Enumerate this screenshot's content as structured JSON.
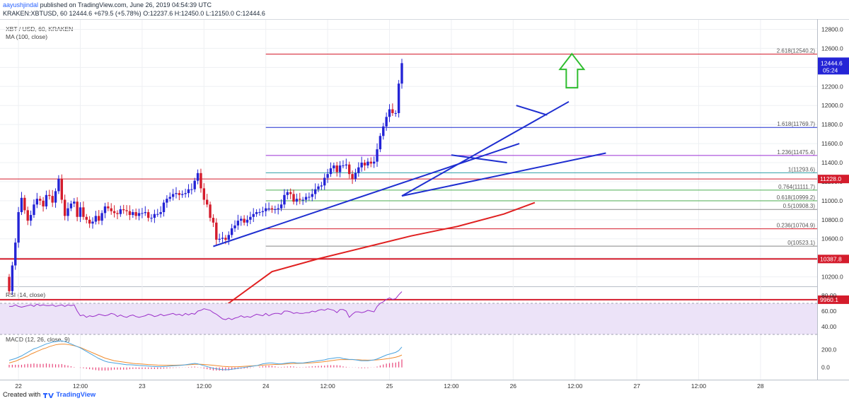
{
  "header": {
    "author": "aayushjindal",
    "published": "published on TradingView.com, June 26, 2019 04:54:39 UTC",
    "ticker": "KRAKEN:XBTUSD, 60",
    "last": "12444.6",
    "change": "+679.5 (+5.78%)",
    "o_label": "O:",
    "o": "12237.6",
    "h_label": "H:",
    "h": "12450.0",
    "l_label": "L:",
    "l": "12150.0",
    "c_label": "C:",
    "c": "12444.6"
  },
  "panel_titles": {
    "symbol": "XBT / USD, 60, KRAKEN",
    "ma": "MA (100, close)",
    "rsi": "RSI (14, close)",
    "macd": "MACD (12, 26, close, 9)"
  },
  "footer": {
    "created_with": "Created with",
    "brand": "TradingView"
  },
  "colors": {
    "bull": "#2424d6",
    "bear": "#d41c2c",
    "ma": "#e02020",
    "trend": "#1e2ed0",
    "fib_violet": "#9b2fd4",
    "fib_teal": "#2ea0a8",
    "fib_green": "#4caf50",
    "fib_grey": "#888888",
    "arrow": "#2ebd2e",
    "rsi_line": "#9b2fc9",
    "rsi_band": "#ece3f8",
    "macd": "#4aa3df",
    "signal": "#f08c30",
    "hist": "#e8457a"
  },
  "chart_data": {
    "type": "candlestick",
    "title": "XBT / USD, 60, KRAKEN",
    "ylim": [
      9900,
      12900
    ],
    "y_ticks": [
      "12800.0",
      "12600.0",
      "12400.0",
      "12200.0",
      "12000.0",
      "11800.0",
      "11600.0",
      "11400.0",
      "11200.0",
      "11000.0",
      "10800.0",
      "10600.0",
      "10400.0",
      "10200.0"
    ],
    "x_ticks": [
      "22",
      "12:00",
      "23",
      "12:00",
      "24",
      "12:00",
      "25",
      "12:00",
      "26",
      "12:00",
      "27",
      "12:00",
      "28"
    ],
    "x_tick_bar": [
      3,
      23,
      43,
      63,
      83,
      103,
      123,
      143,
      163,
      183,
      203,
      223,
      243
    ],
    "closes": [
      10050,
      10320,
      10560,
      10880,
      11030,
      10900,
      10790,
      10850,
      10960,
      11020,
      11000,
      10940,
      11060,
      11050,
      10980,
      11100,
      11230,
      11010,
      10840,
      10920,
      10970,
      10990,
      10830,
      10930,
      10830,
      10800,
      10760,
      10780,
      10840,
      10790,
      10870,
      10940,
      10920,
      10890,
      10870,
      10860,
      10910,
      10900,
      10890,
      10850,
      10880,
      10840,
      10870,
      10870,
      10880,
      10820,
      10820,
      10860,
      10860,
      10880,
      10980,
      11020,
      11040,
      11070,
      11080,
      11060,
      11070,
      11080,
      11120,
      11120,
      11210,
      11290,
      11130,
      11010,
      10960,
      10820,
      10770,
      10590,
      10600,
      10610,
      10590,
      10640,
      10710,
      10740,
      10790,
      10810,
      10770,
      10800,
      10830,
      10860,
      10880,
      10880,
      10890,
      10920,
      10920,
      10910,
      10910,
      10920,
      10960,
      11060,
      11090,
      11070,
      10990,
      11020,
      11010,
      11010,
      11040,
      11040,
      11070,
      11120,
      11150,
      11160,
      11240,
      11280,
      11340,
      11370,
      11300,
      11370,
      11370,
      11380,
      11280,
      11230,
      11290,
      11350,
      11400,
      11370,
      11410,
      11390,
      11410,
      11540,
      11680,
      11780,
      11880,
      11960,
      11920,
      11920,
      12230,
      12444.6
    ],
    "opens_first": 10200,
    "ma_100": {
      "x_bar": [
        70,
        85,
        100,
        115,
        130,
        145,
        160,
        170
      ],
      "y": [
        9900,
        10255,
        10390,
        10510,
        10630,
        10730,
        10860,
        10980
      ]
    },
    "current_price": "12444.6",
    "current_time": "05:24",
    "fibonacci": [
      {
        "level": "2.618",
        "price": 12540.2,
        "label": "2.618(12540.2)"
      },
      {
        "level": "1.618",
        "price": 11769.7,
        "label": "1.618(11769.7)"
      },
      {
        "level": "1.236",
        "price": 11475.4,
        "label": "1.236(11475.4)"
      },
      {
        "level": "1",
        "price": 11293.6,
        "label": "1(11293.6)"
      },
      {
        "level": "0.764",
        "price": 11111.7,
        "label": "0.764(11111.7)"
      },
      {
        "level": "0.618",
        "price": 10999.2,
        "label": "0.618(10999.2)"
      },
      {
        "level": "0.5",
        "price": 10908.3,
        "label": "0.5(10908.3)"
      },
      {
        "level": "0.236",
        "price": 10704.9,
        "label": "0.236(10704.9)"
      },
      {
        "level": "0",
        "price": 10523.1,
        "label": "0(10523.1)"
      }
    ],
    "horizontal_lines": [
      {
        "price": 11228.0,
        "label": "11228.0"
      },
      {
        "price": 10387.8,
        "label": "10387.8"
      },
      {
        "price": 9960.1,
        "label": "9960.1"
      }
    ],
    "trendlines": [
      {
        "x_bar": [
          66,
          165
        ],
        "price": [
          10520,
          11600
        ]
      },
      {
        "x_bar": [
          127,
          181
        ],
        "price": [
          11050,
          12040
        ]
      },
      {
        "x_bar": [
          127,
          193
        ],
        "price": [
          11050,
          11500
        ]
      },
      {
        "x_bar": [
          143,
          161
        ],
        "price": [
          11480,
          11400
        ]
      },
      {
        "x_bar": [
          164,
          174
        ],
        "price": [
          12000,
          11900
        ]
      }
    ],
    "arrow": {
      "direction": "up",
      "x_bar": 182,
      "price": 12350
    },
    "rsi": {
      "ylim": [
        30,
        90
      ],
      "ticks": [
        "80.00",
        "60.00",
        "40.00"
      ],
      "band": [
        30,
        70
      ],
      "values": [
        66,
        66,
        68,
        66,
        65,
        66,
        67,
        68,
        66,
        69,
        67,
        68,
        67,
        67,
        68,
        66,
        67,
        68,
        66,
        68,
        67,
        68,
        60,
        54,
        55,
        52,
        54,
        53,
        54,
        56,
        55,
        54,
        55,
        57,
        56,
        53,
        55,
        53,
        52,
        54,
        55,
        53,
        52,
        53,
        54,
        56,
        55,
        53,
        54,
        56,
        54,
        55,
        56,
        57,
        55,
        56,
        54,
        57,
        55,
        57,
        56,
        60,
        61,
        63,
        62,
        61,
        58,
        56,
        53,
        50,
        49,
        51,
        49,
        51,
        52,
        54,
        52,
        53,
        52,
        54,
        56,
        55,
        54,
        57,
        54,
        56,
        57,
        57,
        56,
        60,
        60,
        59,
        57,
        58,
        57,
        57,
        58,
        58,
        60,
        59,
        61,
        62,
        61,
        63,
        62,
        61,
        58,
        62,
        62,
        60,
        52,
        56,
        59,
        59,
        58,
        59,
        61,
        60,
        59,
        66,
        70,
        72,
        75,
        77,
        75,
        76,
        81,
        85
      ]
    },
    "macd": {
      "ylim": [
        -130,
        380
      ],
      "ticks": [
        "200.0",
        "0.0"
      ],
      "macd_line": [
        80,
        90,
        100,
        115,
        130,
        150,
        170,
        190,
        210,
        220,
        235,
        250,
        265,
        275,
        285,
        290,
        295,
        300,
        290,
        280,
        265,
        250,
        235,
        220,
        200,
        180,
        160,
        140,
        120,
        100,
        85,
        70,
        60,
        55,
        50,
        45,
        40,
        35,
        30,
        30,
        28,
        25,
        22,
        20,
        18,
        15,
        12,
        10,
        8,
        8,
        10,
        12,
        15,
        18,
        20,
        22,
        25,
        30,
        35,
        40,
        45,
        40,
        30,
        20,
        10,
        0,
        -10,
        -15,
        -20,
        -25,
        -25,
        -25,
        -20,
        -15,
        -10,
        -5,
        0,
        5,
        10,
        15,
        20,
        30,
        40,
        45,
        50,
        50,
        45,
        40,
        40,
        45,
        50,
        55,
        55,
        50,
        50,
        50,
        55,
        60,
        65,
        70,
        75,
        80,
        85,
        95,
        100,
        105,
        110,
        110,
        100,
        95,
        90,
        90,
        85,
        80,
        75,
        75,
        75,
        80,
        85,
        95,
        110,
        125,
        140,
        150,
        160,
        170,
        190,
        230
      ],
      "signal_line": [
        50,
        60,
        70,
        85,
        100,
        115,
        130,
        150,
        165,
        180,
        195,
        210,
        220,
        235,
        245,
        255,
        260,
        262,
        262,
        258,
        252,
        245,
        235,
        225,
        210,
        195,
        180,
        165,
        150,
        135,
        120,
        105,
        95,
        85,
        75,
        70,
        65,
        60,
        55,
        50,
        45,
        42,
        40,
        38,
        35,
        32,
        30,
        28,
        26,
        25,
        24,
        24,
        24,
        24,
        25,
        26,
        27,
        28,
        30,
        32,
        35,
        36,
        35,
        33,
        30,
        27,
        24,
        20,
        16,
        12,
        10,
        8,
        7,
        7,
        8,
        10,
        12,
        14,
        16,
        18,
        20,
        22,
        25,
        28,
        30,
        32,
        33,
        34,
        35,
        37,
        40,
        42,
        44,
        45,
        46,
        47,
        48,
        50,
        52,
        55,
        58,
        61,
        65,
        70,
        75,
        80,
        85,
        88,
        88,
        88,
        88,
        88,
        87,
        86,
        84,
        83,
        82,
        82,
        83,
        85,
        88,
        92,
        97,
        102,
        108,
        115,
        125,
        140
      ],
      "histogram": [
        30,
        30,
        30,
        30,
        30,
        35,
        40,
        40,
        45,
        40,
        40,
        40,
        45,
        40,
        40,
        35,
        35,
        38,
        28,
        22,
        13,
        5,
        0,
        -5,
        -10,
        -15,
        -20,
        -25,
        -30,
        -35,
        -35,
        -35,
        -35,
        -30,
        -25,
        -25,
        -25,
        -25,
        -25,
        -20,
        -17,
        -17,
        -18,
        -18,
        -17,
        -17,
        -18,
        -18,
        -18,
        -17,
        -14,
        -12,
        -9,
        -6,
        -5,
        -4,
        -2,
        2,
        5,
        8,
        10,
        4,
        -5,
        -13,
        -20,
        -27,
        -34,
        -35,
        -36,
        -37,
        -35,
        -33,
        -27,
        -22,
        -18,
        -15,
        -12,
        -9,
        -6,
        -3,
        0,
        8,
        15,
        17,
        20,
        18,
        12,
        6,
        5,
        8,
        10,
        13,
        11,
        5,
        4,
        3,
        7,
        10,
        13,
        15,
        17,
        19,
        20,
        25,
        25,
        25,
        25,
        22,
        12,
        7,
        2,
        2,
        -2,
        -6,
        -9,
        -8,
        -7,
        -2,
        2,
        10,
        22,
        33,
        43,
        48,
        52,
        55,
        65,
        90
      ]
    }
  }
}
